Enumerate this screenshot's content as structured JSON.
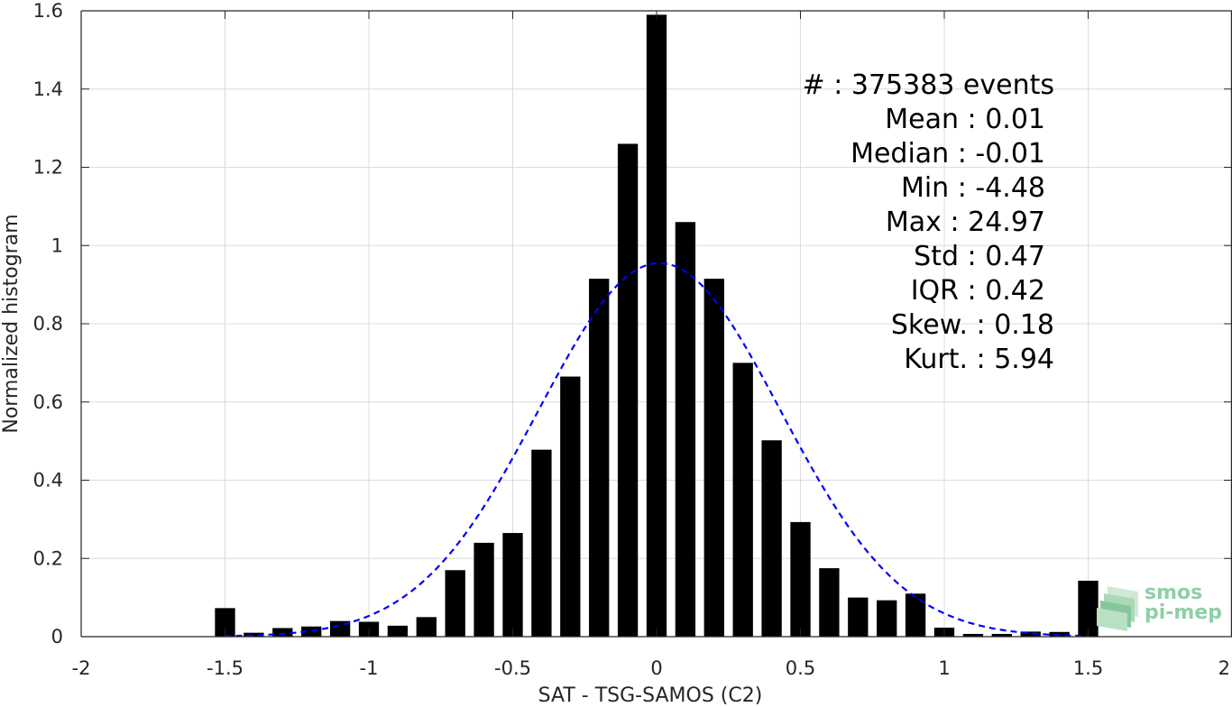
{
  "chart_data": {
    "type": "bar",
    "title": "",
    "xlabel": "SAT - TSG-SAMOS (C2)",
    "ylabel": "Normalized histogram",
    "xlim": [
      -2,
      2
    ],
    "ylim": [
      0,
      1.6
    ],
    "grid": true,
    "x_ticks": [
      -2,
      -1.5,
      -1,
      -0.5,
      0,
      0.5,
      1,
      1.5,
      2
    ],
    "x_tick_labels": [
      "-2",
      "-1.5",
      "-1",
      "-0.5",
      "0",
      "0.5",
      "1",
      "1.5",
      "2"
    ],
    "y_ticks": [
      0,
      0.2,
      0.4,
      0.6,
      0.8,
      1,
      1.2,
      1.4,
      1.6
    ],
    "y_tick_labels": [
      "0",
      "0.2",
      "0.4",
      "0.6",
      "0.8",
      "1",
      "1.2",
      "1.4",
      "1.6"
    ],
    "bin_width": 0.1,
    "bar_relative_width": 0.7,
    "bars": {
      "x": [
        -1.5,
        -1.4,
        -1.3,
        -1.2,
        -1.1,
        -1.0,
        -0.9,
        -0.8,
        -0.7,
        -0.6,
        -0.5,
        -0.4,
        -0.3,
        -0.2,
        -0.1,
        0.0,
        0.1,
        0.2,
        0.3,
        0.4,
        0.5,
        0.6,
        0.7,
        0.8,
        0.9,
        1.0,
        1.1,
        1.2,
        1.3,
        1.4,
        1.5
      ],
      "values": [
        0.073,
        0.01,
        0.022,
        0.026,
        0.04,
        0.038,
        0.028,
        0.05,
        0.17,
        0.24,
        0.265,
        0.478,
        0.665,
        0.915,
        1.26,
        1.59,
        1.06,
        0.915,
        0.7,
        0.502,
        0.293,
        0.175,
        0.1,
        0.093,
        0.11,
        0.023,
        0.007,
        0.007,
        0.013,
        0.012,
        0.143
      ],
      "color": "#000000"
    },
    "fit_curve": {
      "type": "gaussian",
      "mean": 0.01,
      "std": 0.42,
      "peak": 0.955,
      "x_range": [
        -1.5,
        1.5
      ],
      "color": "#0000ff",
      "style": "dashed"
    },
    "stats": {
      "lines": [
        "#  : 375383 events",
        "Mean : 0.01",
        "Median : -0.01",
        "Min : -4.48",
        "Max : 24.97",
        "Std : 0.47",
        "IQR : 0.42",
        "Skew. : 0.18",
        "Kurt. : 5.94"
      ]
    },
    "logo": {
      "lines": [
        "smos",
        "pi-mep"
      ],
      "color": "#8fcfa6"
    }
  }
}
